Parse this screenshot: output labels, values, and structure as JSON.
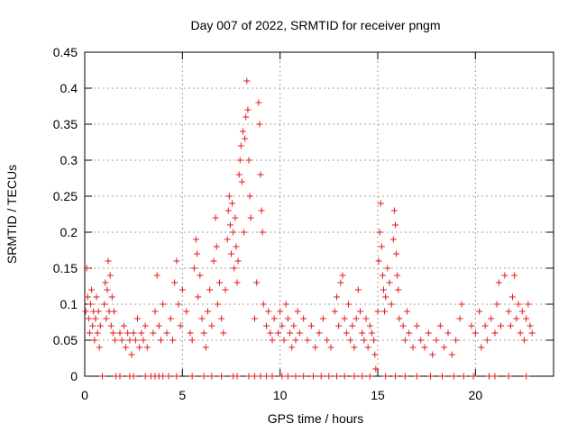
{
  "chart_data": {
    "type": "scatter",
    "title": "Day 007 of 2022, SRMTID for receiver pngm",
    "xlabel": "GPS time / hours",
    "ylabel": "SRMTID / TECUs",
    "xlim": [
      0,
      24
    ],
    "ylim": [
      0,
      0.45
    ],
    "x_ticks": [
      0,
      5,
      10,
      15,
      20
    ],
    "y_ticks": [
      0,
      0.05,
      0.1,
      0.15,
      0.2,
      0.25,
      0.3,
      0.35,
      0.4,
      0.45
    ],
    "x_tick_labels": [
      "0",
      "5",
      "10",
      "15",
      "20"
    ],
    "y_tick_labels": [
      "0",
      "0.05",
      "0.1",
      "0.15",
      "0.2",
      "0.25",
      "0.3",
      "0.35",
      "0.4",
      "0.45"
    ],
    "grid": true,
    "marker": "+",
    "color": "#e41a1c",
    "series": [
      {
        "name": "SRMTID",
        "points": [
          [
            0.05,
            0.09
          ],
          [
            0.1,
            0.15
          ],
          [
            0.15,
            0.11
          ],
          [
            0.2,
            0.08
          ],
          [
            0.25,
            0.06
          ],
          [
            0.3,
            0.1
          ],
          [
            0.35,
            0.12
          ],
          [
            0.4,
            0.07
          ],
          [
            0.45,
            0.09
          ],
          [
            0.5,
            0.05
          ],
          [
            0.55,
            0.08
          ],
          [
            0.6,
            0.11
          ],
          [
            0.65,
            0.06
          ],
          [
            0.7,
            0.09
          ],
          [
            0.75,
            0.04
          ],
          [
            0.8,
            0.07
          ],
          [
            1.0,
            0.1
          ],
          [
            1.05,
            0.13
          ],
          [
            1.1,
            0.08
          ],
          [
            1.15,
            0.12
          ],
          [
            1.2,
            0.16
          ],
          [
            1.25,
            0.09
          ],
          [
            1.3,
            0.14
          ],
          [
            1.35,
            0.07
          ],
          [
            1.4,
            0.11
          ],
          [
            1.45,
            0.06
          ],
          [
            1.5,
            0.09
          ],
          [
            1.55,
            0.05
          ],
          [
            1.8,
            0.06
          ],
          [
            1.9,
            0.05
          ],
          [
            2.0,
            0.07
          ],
          [
            2.1,
            0.04
          ],
          [
            2.2,
            0.06
          ],
          [
            2.3,
            0.05
          ],
          [
            2.4,
            0.03
          ],
          [
            2.5,
            0.06
          ],
          [
            2.6,
            0.05
          ],
          [
            2.7,
            0.08
          ],
          [
            2.8,
            0.04
          ],
          [
            2.9,
            0.06
          ],
          [
            3.0,
            0.05
          ],
          [
            3.1,
            0.07
          ],
          [
            3.2,
            0.04
          ],
          [
            3.5,
            0.06
          ],
          [
            3.6,
            0.09
          ],
          [
            3.7,
            0.14
          ],
          [
            3.8,
            0.07
          ],
          [
            3.9,
            0.05
          ],
          [
            4.0,
            0.1
          ],
          [
            4.2,
            0.06
          ],
          [
            4.4,
            0.08
          ],
          [
            4.5,
            0.05
          ],
          [
            4.6,
            0.13
          ],
          [
            4.7,
            0.16
          ],
          [
            4.8,
            0.1
          ],
          [
            4.9,
            0.07
          ],
          [
            5.0,
            0.12
          ],
          [
            5.2,
            0.09
          ],
          [
            5.4,
            0.06
          ],
          [
            5.5,
            0.05
          ],
          [
            5.6,
            0.15
          ],
          [
            5.7,
            0.19
          ],
          [
            5.75,
            0.17
          ],
          [
            5.8,
            0.11
          ],
          [
            5.9,
            0.14
          ],
          [
            6.0,
            0.08
          ],
          [
            6.1,
            0.06
          ],
          [
            6.2,
            0.04
          ],
          [
            6.3,
            0.09
          ],
          [
            6.4,
            0.12
          ],
          [
            6.5,
            0.07
          ],
          [
            6.6,
            0.16
          ],
          [
            6.7,
            0.22
          ],
          [
            6.75,
            0.18
          ],
          [
            6.8,
            0.1
          ],
          [
            6.9,
            0.13
          ],
          [
            7.0,
            0.08
          ],
          [
            7.1,
            0.06
          ],
          [
            7.2,
            0.12
          ],
          [
            7.3,
            0.19
          ],
          [
            7.35,
            0.23
          ],
          [
            7.4,
            0.25
          ],
          [
            7.45,
            0.21
          ],
          [
            7.5,
            0.17
          ],
          [
            7.55,
            0.24
          ],
          [
            7.6,
            0.2
          ],
          [
            7.65,
            0.15
          ],
          [
            7.7,
            0.22
          ],
          [
            7.75,
            0.18
          ],
          [
            7.8,
            0.13
          ],
          [
            7.85,
            0.16
          ],
          [
            7.9,
            0.28
          ],
          [
            7.95,
            0.3
          ],
          [
            8.0,
            0.32
          ],
          [
            8.05,
            0.27
          ],
          [
            8.1,
            0.34
          ],
          [
            8.15,
            0.2
          ],
          [
            8.2,
            0.33
          ],
          [
            8.25,
            0.36
          ],
          [
            8.3,
            0.41
          ],
          [
            8.35,
            0.37
          ],
          [
            8.4,
            0.3
          ],
          [
            8.45,
            0.25
          ],
          [
            8.5,
            0.22
          ],
          [
            8.7,
            0.08
          ],
          [
            8.8,
            0.13
          ],
          [
            8.9,
            0.38
          ],
          [
            8.95,
            0.35
          ],
          [
            9.0,
            0.28
          ],
          [
            9.05,
            0.23
          ],
          [
            9.1,
            0.2
          ],
          [
            9.15,
            0.1
          ],
          [
            9.3,
            0.07
          ],
          [
            9.4,
            0.09
          ],
          [
            9.5,
            0.06
          ],
          [
            9.6,
            0.05
          ],
          [
            9.7,
            0.08
          ],
          [
            9.9,
            0.06
          ],
          [
            10.0,
            0.09
          ],
          [
            10.1,
            0.07
          ],
          [
            10.2,
            0.05
          ],
          [
            10.3,
            0.1
          ],
          [
            10.4,
            0.08
          ],
          [
            10.5,
            0.06
          ],
          [
            10.6,
            0.04
          ],
          [
            10.7,
            0.07
          ],
          [
            10.8,
            0.05
          ],
          [
            10.9,
            0.09
          ],
          [
            11.0,
            0.06
          ],
          [
            11.2,
            0.08
          ],
          [
            11.4,
            0.05
          ],
          [
            11.6,
            0.07
          ],
          [
            11.8,
            0.04
          ],
          [
            12.0,
            0.06
          ],
          [
            12.2,
            0.08
          ],
          [
            12.4,
            0.05
          ],
          [
            12.6,
            0.04
          ],
          [
            12.8,
            0.09
          ],
          [
            12.9,
            0.11
          ],
          [
            13.0,
            0.07
          ],
          [
            13.1,
            0.13
          ],
          [
            13.2,
            0.14
          ],
          [
            13.3,
            0.08
          ],
          [
            13.4,
            0.06
          ],
          [
            13.5,
            0.1
          ],
          [
            13.6,
            0.05
          ],
          [
            13.7,
            0.07
          ],
          [
            13.8,
            0.04
          ],
          [
            13.9,
            0.08
          ],
          [
            14.0,
            0.12
          ],
          [
            14.1,
            0.09
          ],
          [
            14.2,
            0.06
          ],
          [
            14.3,
            0.05
          ],
          [
            14.4,
            0.08
          ],
          [
            14.5,
            0.04
          ],
          [
            14.6,
            0.07
          ],
          [
            14.7,
            0.06
          ],
          [
            14.8,
            0.05
          ],
          [
            14.85,
            0.03
          ],
          [
            14.9,
            0.01
          ],
          [
            15.0,
            0.09
          ],
          [
            15.05,
            0.16
          ],
          [
            15.1,
            0.2
          ],
          [
            15.15,
            0.24
          ],
          [
            15.2,
            0.18
          ],
          [
            15.25,
            0.14
          ],
          [
            15.3,
            0.12
          ],
          [
            15.35,
            0.09
          ],
          [
            15.4,
            0.11
          ],
          [
            15.5,
            0.15
          ],
          [
            15.6,
            0.13
          ],
          [
            15.7,
            0.1
          ],
          [
            15.8,
            0.19
          ],
          [
            15.85,
            0.23
          ],
          [
            15.9,
            0.21
          ],
          [
            15.95,
            0.17
          ],
          [
            16.0,
            0.14
          ],
          [
            16.05,
            0.12
          ],
          [
            16.1,
            0.08
          ],
          [
            16.3,
            0.07
          ],
          [
            16.4,
            0.05
          ],
          [
            16.5,
            0.09
          ],
          [
            16.6,
            0.06
          ],
          [
            16.8,
            0.04
          ],
          [
            17.0,
            0.07
          ],
          [
            17.2,
            0.05
          ],
          [
            17.4,
            0.04
          ],
          [
            17.6,
            0.06
          ],
          [
            17.8,
            0.03
          ],
          [
            18.0,
            0.05
          ],
          [
            18.2,
            0.07
          ],
          [
            18.4,
            0.04
          ],
          [
            18.6,
            0.06
          ],
          [
            18.8,
            0.03
          ],
          [
            19.0,
            0.05
          ],
          [
            19.2,
            0.08
          ],
          [
            19.3,
            0.1
          ],
          [
            19.8,
            0.07
          ],
          [
            20.0,
            0.06
          ],
          [
            20.2,
            0.09
          ],
          [
            20.3,
            0.04
          ],
          [
            20.5,
            0.07
          ],
          [
            20.6,
            0.05
          ],
          [
            20.8,
            0.08
          ],
          [
            21.0,
            0.06
          ],
          [
            21.1,
            0.1
          ],
          [
            21.2,
            0.13
          ],
          [
            21.3,
            0.07
          ],
          [
            21.5,
            0.14
          ],
          [
            21.7,
            0.09
          ],
          [
            21.8,
            0.07
          ],
          [
            21.9,
            0.11
          ],
          [
            22.0,
            0.14
          ],
          [
            22.1,
            0.08
          ],
          [
            22.2,
            0.1
          ],
          [
            22.3,
            0.06
          ],
          [
            22.4,
            0.09
          ],
          [
            22.5,
            0.05
          ],
          [
            22.6,
            0.08
          ],
          [
            22.7,
            0.1
          ],
          [
            22.8,
            0.07
          ],
          [
            22.9,
            0.06
          ],
          [
            0.9,
            0
          ],
          [
            1.6,
            0
          ],
          [
            1.8,
            0
          ],
          [
            2.3,
            0
          ],
          [
            2.5,
            0
          ],
          [
            3.1,
            0
          ],
          [
            3.4,
            0
          ],
          [
            3.6,
            0
          ],
          [
            3.8,
            0
          ],
          [
            4.0,
            0
          ],
          [
            4.3,
            0
          ],
          [
            4.7,
            0
          ],
          [
            5.5,
            0
          ],
          [
            6.1,
            0
          ],
          [
            6.5,
            0
          ],
          [
            7.0,
            0
          ],
          [
            7.6,
            0
          ],
          [
            7.8,
            0
          ],
          [
            8.4,
            0
          ],
          [
            8.7,
            0
          ],
          [
            9.0,
            0
          ],
          [
            9.3,
            0
          ],
          [
            9.6,
            0
          ],
          [
            10.1,
            0
          ],
          [
            10.4,
            0
          ],
          [
            10.8,
            0
          ],
          [
            11.2,
            0
          ],
          [
            11.7,
            0
          ],
          [
            12.1,
            0
          ],
          [
            12.5,
            0
          ],
          [
            12.9,
            0
          ],
          [
            13.3,
            0
          ],
          [
            13.8,
            0
          ],
          [
            14.2,
            0
          ],
          [
            14.6,
            0
          ],
          [
            15.4,
            0
          ],
          [
            15.9,
            0
          ],
          [
            16.4,
            0
          ],
          [
            17.0,
            0
          ],
          [
            17.7,
            0
          ],
          [
            18.3,
            0
          ],
          [
            18.9,
            0
          ],
          [
            19.4,
            0
          ],
          [
            19.9,
            0
          ],
          [
            20.7,
            0
          ],
          [
            21.0,
            0
          ],
          [
            21.7,
            0
          ],
          [
            22.6,
            0
          ]
        ]
      }
    ]
  }
}
